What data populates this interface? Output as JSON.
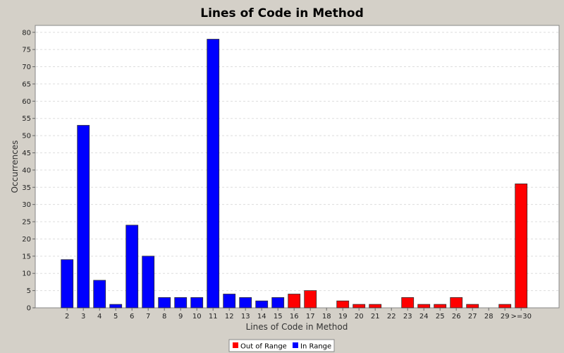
{
  "chart_data": {
    "type": "bar",
    "title": "Lines of Code in Method",
    "xlabel": "Lines of Code in Method",
    "ylabel": "Occurrences",
    "ylim": [
      0,
      82
    ],
    "yticks": [
      0,
      5,
      10,
      15,
      20,
      25,
      30,
      35,
      40,
      45,
      50,
      55,
      60,
      65,
      70,
      75,
      80
    ],
    "grid": true,
    "legend_position": "bottom",
    "categories": [
      "2",
      "3",
      "4",
      "5",
      "6",
      "7",
      "8",
      "9",
      "10",
      "11",
      "12",
      "13",
      "14",
      "15",
      "16",
      "17",
      "18",
      "19",
      "20",
      "21",
      "22",
      "23",
      "24",
      "25",
      "26",
      "27",
      "28",
      "29",
      ">=30"
    ],
    "values": [
      14,
      53,
      8,
      1,
      24,
      15,
      3,
      3,
      3,
      78,
      4,
      3,
      2,
      3,
      4,
      5,
      0,
      2,
      1,
      1,
      0,
      3,
      1,
      1,
      3,
      1,
      0,
      1,
      36
    ],
    "in_range": [
      true,
      true,
      true,
      true,
      true,
      true,
      true,
      true,
      true,
      true,
      true,
      true,
      true,
      true,
      false,
      false,
      false,
      false,
      false,
      false,
      false,
      false,
      false,
      false,
      false,
      false,
      false,
      false,
      false
    ],
    "series": [
      {
        "name": "Out of Range",
        "color": "#ff0000"
      },
      {
        "name": "In Range",
        "color": "#0000ff"
      }
    ]
  }
}
